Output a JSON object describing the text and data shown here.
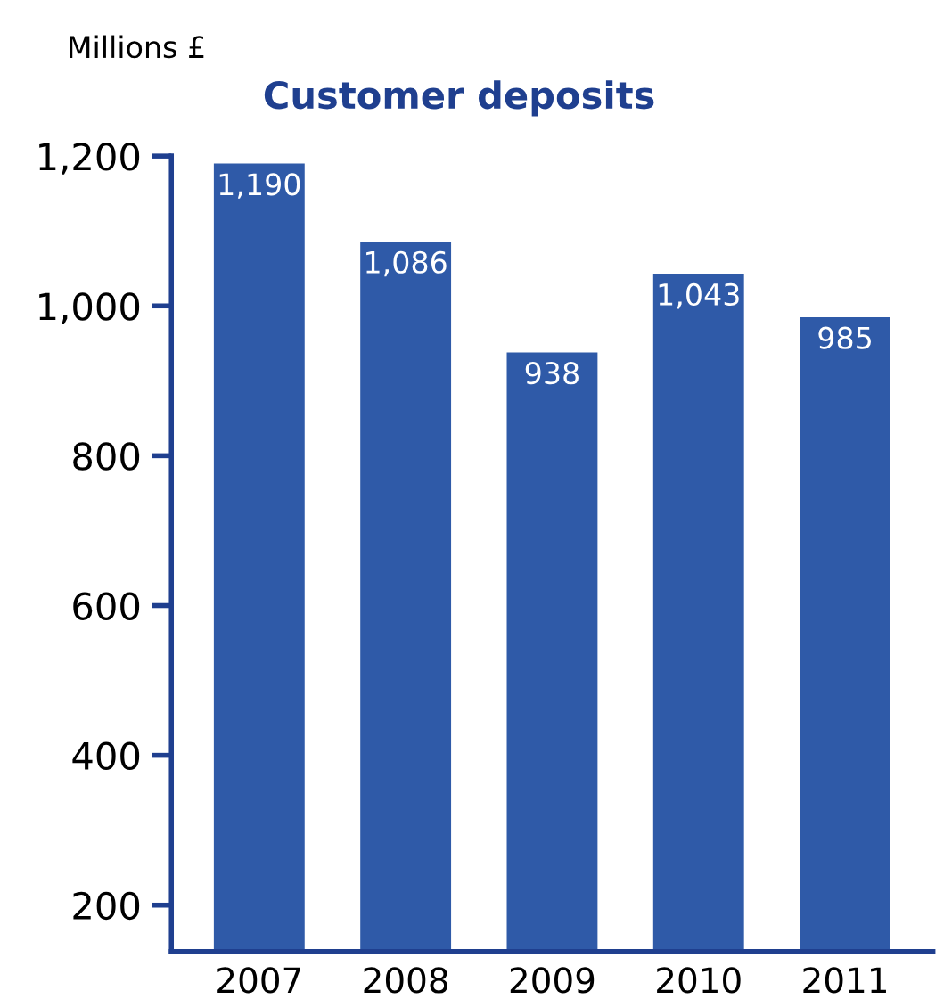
{
  "chart_data": {
    "type": "bar",
    "title": "Customer deposits",
    "ylabel": "Millions £",
    "categories": [
      "2007",
      "2008",
      "2009",
      "2010",
      "2011"
    ],
    "values": [
      1190,
      1086,
      938,
      1043,
      985
    ],
    "value_labels": [
      "1,190",
      "1,086",
      "938",
      "1,043",
      "985"
    ],
    "color": "#2f5aa8",
    "ylim": [
      138,
      1200
    ],
    "yticks": [
      200,
      400,
      600,
      800,
      {
        "value": 1000,
        "label": "1,000"
      },
      {
        "value": 1200,
        "label": "1,200"
      }
    ],
    "grid": false
  }
}
